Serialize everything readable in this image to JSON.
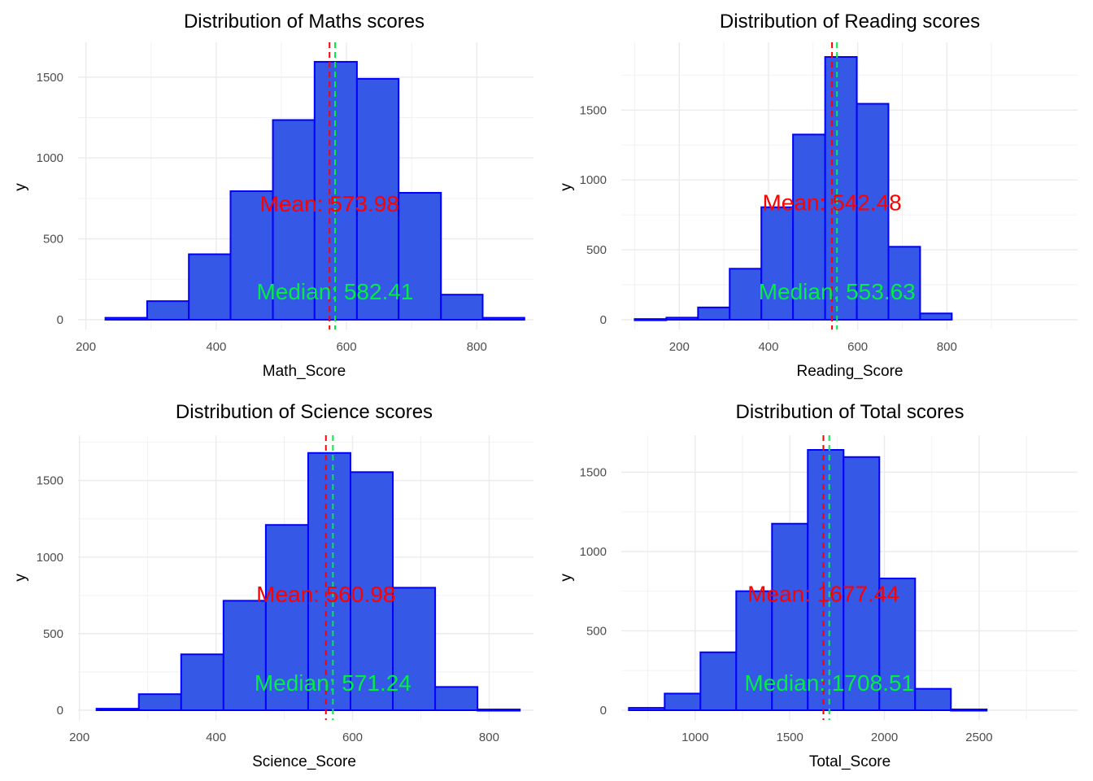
{
  "chart_data": [
    {
      "type": "bar",
      "title": "Distribution of Maths scores",
      "xlabel": "Math_Score",
      "ylabel": "y",
      "xlim": [
        188,
        887
      ],
      "ylim": [
        0,
        1625
      ],
      "x_ticks": [
        200,
        400,
        600,
        800
      ],
      "y_ticks": [
        0,
        500,
        1000,
        1500
      ],
      "bin_edges": [
        230,
        294,
        358,
        422,
        487,
        551,
        616,
        680,
        745,
        809,
        873
      ],
      "values": [
        12,
        115,
        405,
        795,
        1235,
        1595,
        1490,
        785,
        155,
        12
      ],
      "fill_color": "#3558e6",
      "edge_color": "#0000ff",
      "mean": {
        "value": 573.98,
        "label": "Mean: 573.98",
        "color": "#ff0000",
        "y": 720
      },
      "median": {
        "value": 582.41,
        "label": "Median: 582.41",
        "color": "#00ee44",
        "y": 175
      }
    },
    {
      "type": "bar",
      "title": "Distribution of Reading scores",
      "xlabel": "Reading_Score",
      "ylabel": "y",
      "xlim": [
        70,
        1093
      ],
      "ylim": [
        0,
        1880
      ],
      "x_ticks": [
        200,
        400,
        600,
        800
      ],
      "y_ticks": [
        0,
        500,
        1000,
        1500
      ],
      "bin_edges": [
        100,
        171,
        242,
        313,
        384,
        455,
        527,
        598,
        669,
        740,
        811
      ],
      "values": [
        5,
        15,
        88,
        365,
        805,
        1325,
        1880,
        1545,
        522,
        45
      ],
      "fill_color": "#3558e6",
      "edge_color": "#0000ff",
      "mean": {
        "value": 542.48,
        "label": "Mean: 542.48",
        "color": "#ff0000",
        "y": 840
      },
      "median": {
        "value": 553.63,
        "label": "Median: 553.63",
        "color": "#00ee44",
        "y": 205
      }
    },
    {
      "type": "bar",
      "title": "Distribution of Science scores",
      "xlabel": "Science_Score",
      "ylabel": "y",
      "xlim": [
        198,
        865
      ],
      "ylim": [
        0,
        1700
      ],
      "x_ticks": [
        200,
        400,
        600,
        800
      ],
      "y_ticks": [
        0,
        500,
        1000,
        1500
      ],
      "bin_edges": [
        225,
        287,
        349,
        411,
        473,
        535,
        597,
        659,
        721,
        783,
        845
      ],
      "values": [
        10,
        105,
        365,
        715,
        1210,
        1680,
        1555,
        800,
        152,
        5
      ],
      "fill_color": "#3558e6",
      "edge_color": "#0000ff",
      "mean": {
        "value": 560.98,
        "label": "Mean: 560.98",
        "color": "#ff0000",
        "y": 760
      },
      "median": {
        "value": 571.24,
        "label": "Median: 571.24",
        "color": "#00ee44",
        "y": 180
      }
    },
    {
      "type": "bar",
      "title": "Distribution of Total scores",
      "xlabel": "Total_Score",
      "ylabel": "y",
      "xlim": [
        610,
        3020
      ],
      "ylim": [
        0,
        1640
      ],
      "x_ticks": [
        1000,
        1500,
        2000,
        2500
      ],
      "y_ticks": [
        0,
        500,
        1000,
        1500
      ],
      "bin_edges": [
        650,
        839,
        1028,
        1217,
        1406,
        1595,
        1784,
        1973,
        2162,
        2351,
        2540
      ],
      "values": [
        15,
        105,
        365,
        750,
        1175,
        1640,
        1595,
        830,
        135,
        5
      ],
      "fill_color": "#3558e6",
      "edge_color": "#0000ff",
      "mean": {
        "value": 1677.44,
        "label": "Mean: 1677.44",
        "color": "#ff0000",
        "y": 735
      },
      "median": {
        "value": 1708.51,
        "label": "Median: 1708.51",
        "color": "#00ee44",
        "y": 175
      }
    }
  ]
}
